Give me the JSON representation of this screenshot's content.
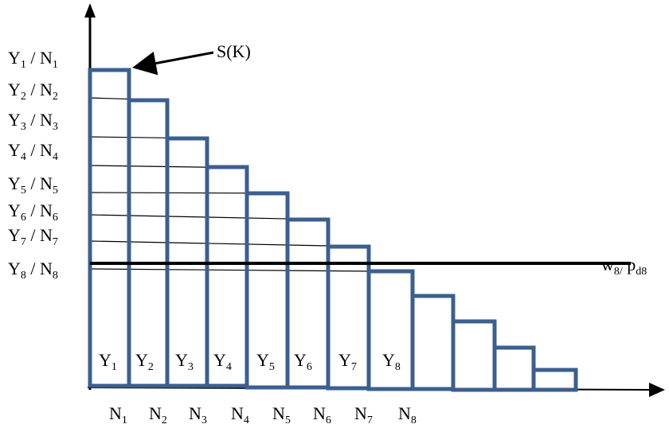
{
  "curve_label": "S(K)",
  "threshold_label": {
    "main": "w",
    "sub": "8/",
    "main2": " p",
    "sub2": "d8"
  },
  "ratio_labels": [
    {
      "y": "Y",
      "yi": "1",
      "n": "N",
      "ni": "1"
    },
    {
      "y": "Y",
      "yi": "2",
      "n": "N",
      "ni": "2"
    },
    {
      "y": "Y",
      "yi": "3",
      "n": "N",
      "ni": "3"
    },
    {
      "y": "Y",
      "yi": "4",
      "n": "N",
      "ni": "4"
    },
    {
      "y": "Y",
      "yi": "5",
      "n": "N",
      "ni": "5"
    },
    {
      "y": "Y",
      "yi": "6",
      "n": "N",
      "ni": "6"
    },
    {
      "y": "Y",
      "yi": "7",
      "n": "N",
      "ni": "7"
    },
    {
      "y": "Y",
      "yi": "8",
      "n": "N",
      "ni": "8"
    }
  ],
  "bar_labels": [
    {
      "t": "Y",
      "i": "1"
    },
    {
      "t": "Y",
      "i": "2"
    },
    {
      "t": "Y",
      "i": "3"
    },
    {
      "t": "Y",
      "i": "4"
    },
    {
      "t": "Y",
      "i": "5"
    },
    {
      "t": "Y",
      "i": "6"
    },
    {
      "t": "Y",
      "i": "7"
    },
    {
      "t": "Y",
      "i": "8"
    }
  ],
  "x_labels": [
    {
      "t": "N",
      "i": "1"
    },
    {
      "t": "N",
      "i": "2"
    },
    {
      "t": "N",
      "i": "3"
    },
    {
      "t": "N",
      "i": "4"
    },
    {
      "t": "N",
      "i": "5"
    },
    {
      "t": "N",
      "i": "6"
    },
    {
      "t": "N",
      "i": "7"
    },
    {
      "t": "N",
      "i": "8"
    }
  ],
  "colors": {
    "steps": "#3b5f8f",
    "axes": "#000000"
  }
}
